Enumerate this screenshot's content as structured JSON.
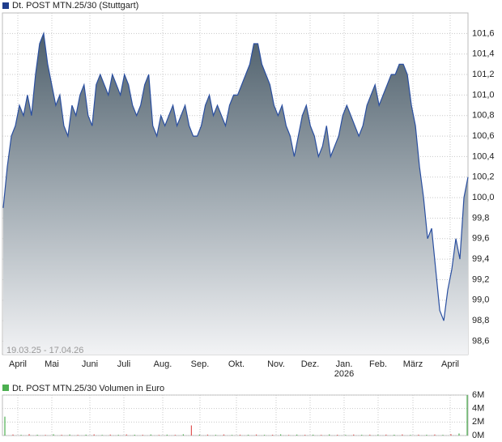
{
  "chart_data": [
    {
      "type": "area",
      "title": "Dt. POST MTN.25/30 (Stuttgart)",
      "subtitle": "19.03.25 - 17.04.26",
      "color": "#2a4fa0",
      "legend_color": "#1f3d8c",
      "x_labels": [
        "April",
        "Mai",
        "Juni",
        "Juli",
        "Aug.",
        "Sep.",
        "Okt.",
        "Nov.",
        "Dez.",
        "Jan.",
        "Feb.",
        "März",
        "April"
      ],
      "annotations": [
        "2026"
      ],
      "values": [
        99.9,
        100.3,
        100.6,
        100.7,
        100.9,
        100.8,
        101.0,
        100.8,
        101.2,
        101.5,
        101.6,
        101.3,
        101.1,
        100.9,
        101.0,
        100.7,
        100.6,
        100.9,
        100.8,
        101.0,
        101.1,
        100.8,
        100.7,
        101.1,
        101.2,
        101.1,
        101.0,
        101.2,
        101.1,
        101.0,
        101.2,
        101.1,
        100.9,
        100.8,
        100.9,
        101.1,
        101.2,
        100.7,
        100.6,
        100.8,
        100.7,
        100.8,
        100.9,
        100.7,
        100.8,
        100.9,
        100.7,
        100.6,
        100.6,
        100.7,
        100.9,
        101.0,
        100.8,
        100.9,
        100.8,
        100.7,
        100.9,
        101.0,
        101.0,
        101.1,
        101.2,
        101.3,
        101.5,
        101.5,
        101.3,
        101.2,
        101.1,
        100.9,
        100.8,
        100.9,
        100.7,
        100.6,
        100.4,
        100.6,
        100.8,
        100.9,
        100.7,
        100.6,
        100.4,
        100.5,
        100.7,
        100.4,
        100.5,
        100.6,
        100.8,
        100.9,
        100.8,
        100.7,
        100.6,
        100.7,
        100.9,
        101.0,
        101.1,
        100.9,
        101.0,
        101.1,
        101.2,
        101.2,
        101.3,
        101.3,
        101.2,
        100.9,
        100.7,
        100.3,
        100.0,
        99.6,
        99.7,
        99.3,
        98.9,
        98.8,
        99.1,
        99.3,
        99.6,
        99.4,
        100.0,
        100.2
      ],
      "ylim": [
        98.47,
        101.8
      ],
      "yticks": [
        {
          "value": 98.6,
          "label": "98,6"
        },
        {
          "value": 98.8,
          "label": "98,8"
        },
        {
          "value": 99.0,
          "label": "99,0"
        },
        {
          "value": 99.2,
          "label": "99,2"
        },
        {
          "value": 99.4,
          "label": "99,4"
        },
        {
          "value": 99.6,
          "label": "99,6"
        },
        {
          "value": 99.8,
          "label": "99,8"
        },
        {
          "value": 100.0,
          "label": "100,0"
        },
        {
          "value": 100.2,
          "label": "100,2"
        },
        {
          "value": 100.4,
          "label": "100,4"
        },
        {
          "value": 100.6,
          "label": "100,6"
        },
        {
          "value": 100.8,
          "label": "100,8"
        },
        {
          "value": 101.0,
          "label": "101,0"
        },
        {
          "value": 101.2,
          "label": "101,2"
        },
        {
          "value": 101.4,
          "label": "101,4"
        },
        {
          "value": 101.6,
          "label": "101,6"
        }
      ],
      "grid": true
    },
    {
      "type": "bar",
      "title": "Dt. POST MTN.25/30 Volumen in Euro",
      "legend_color": "#4caf50",
      "values": [
        2800000,
        150000,
        100000,
        200000,
        120000,
        90000,
        180000,
        110000,
        150000,
        100000,
        130000,
        170000,
        90000,
        140000,
        100000,
        160000,
        120000,
        110000,
        150000,
        90000,
        130000,
        100000,
        180000,
        1500000,
        120000,
        140000,
        100000,
        160000,
        90000,
        130000,
        110000,
        150000,
        100000,
        120000,
        170000,
        90000,
        140000,
        110000,
        130000,
        100000,
        160000,
        120000,
        90000,
        150000,
        110000,
        130000,
        100000,
        140000,
        120000,
        160000,
        90000,
        130000,
        110000,
        150000,
        100000,
        200000,
        300000,
        6000000
      ],
      "colors": [
        "#4caf50",
        "#e05555",
        "#4caf50",
        "#e05555",
        "#4caf50",
        "#e05555",
        "#4caf50",
        "#e05555",
        "#4caf50",
        "#e05555",
        "#4caf50",
        "#e05555",
        "#4caf50",
        "#e05555",
        "#4caf50",
        "#e05555",
        "#4caf50",
        "#e05555",
        "#4caf50",
        "#e05555",
        "#4caf50",
        "#e05555",
        "#4caf50",
        "#e05555",
        "#4caf50",
        "#e05555",
        "#4caf50",
        "#e05555",
        "#4caf50",
        "#e05555",
        "#4caf50",
        "#e05555",
        "#4caf50",
        "#e05555",
        "#4caf50",
        "#e05555",
        "#4caf50",
        "#e05555",
        "#4caf50",
        "#e05555",
        "#4caf50",
        "#e05555",
        "#4caf50",
        "#e05555",
        "#4caf50",
        "#e05555",
        "#4caf50",
        "#e05555",
        "#4caf50",
        "#e05555",
        "#4caf50",
        "#e05555",
        "#4caf50",
        "#e05555",
        "#4caf50",
        "#e05555",
        "#4caf50",
        "#4caf50"
      ],
      "ylim": [
        0,
        6000000
      ],
      "yticks": [
        {
          "value": 0,
          "label": "0M"
        },
        {
          "value": 2000000,
          "label": "2M"
        },
        {
          "value": 4000000,
          "label": "4M"
        },
        {
          "value": 6000000,
          "label": "6M"
        }
      ],
      "grid": true
    }
  ]
}
